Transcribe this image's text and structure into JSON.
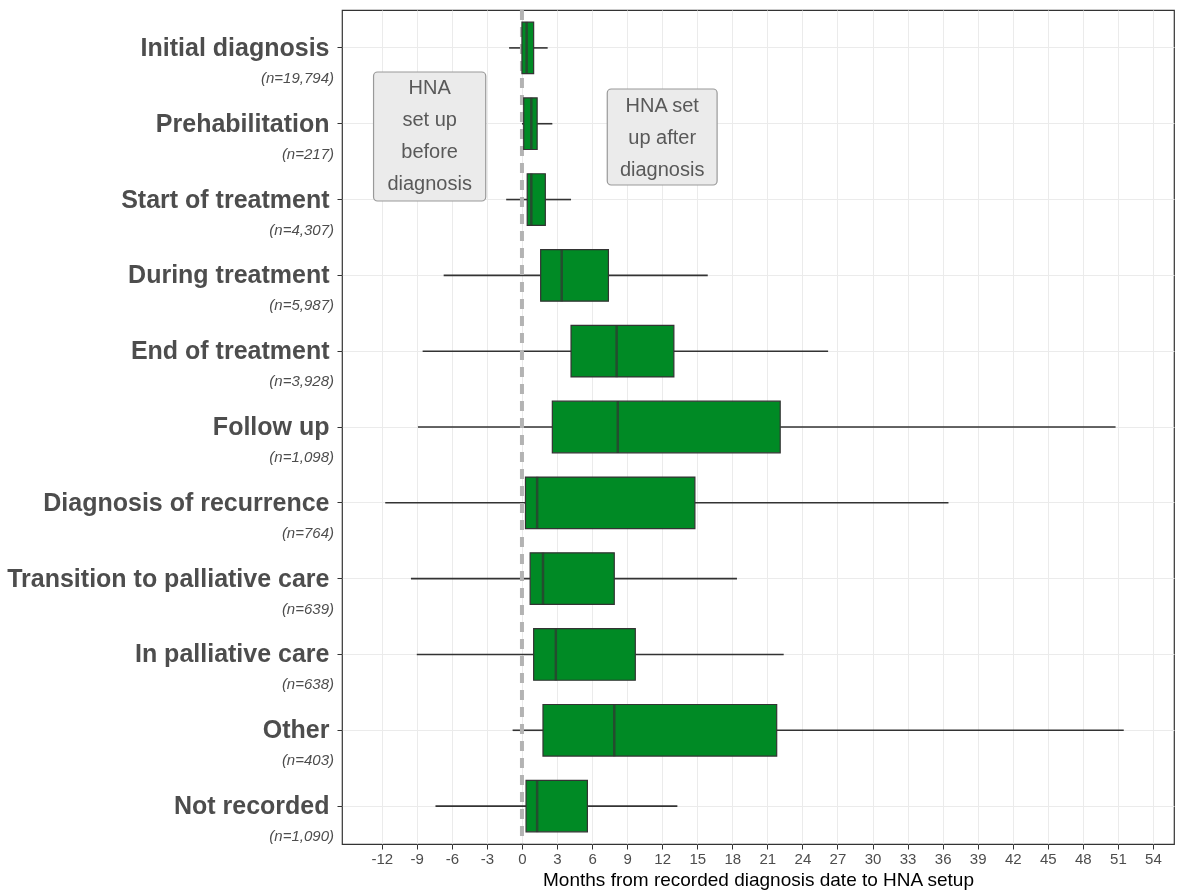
{
  "chart_data": {
    "type": "box",
    "orientation": "horizontal",
    "categories": [
      "Initial diagnosis\n(n=19,794)",
      "Prehabilitation\n(n=217)",
      "Start of treatment\n(n=4,307)",
      "During treatment\n(n=5,987)",
      "End of treatment\n(n=3,928)",
      "Follow up\n(n=1,098)",
      "Diagnosis of recurrence\n(n=764)",
      "Transition to palliative care\n(n=639)",
      "In palliative care\n(n=638)",
      "Other\n(n=403)",
      "Not recorded\n(n=1,090)"
    ],
    "boxes": [
      {
        "low": -1.1,
        "q1": 0.0,
        "median": 0.4,
        "q3": 1.0,
        "high": 2.2
      },
      {
        "low": 0.0,
        "q1": 0.15,
        "median": 0.8,
        "q3": 1.3,
        "high": 2.6
      },
      {
        "low": -1.35,
        "q1": 0.45,
        "median": 0.8,
        "q3": 2.0,
        "high": 4.2
      },
      {
        "low": -6.7,
        "q1": 1.6,
        "median": 3.4,
        "q3": 7.4,
        "high": 15.9
      },
      {
        "low": -8.5,
        "q1": 4.2,
        "median": 8.1,
        "q3": 13.0,
        "high": 26.2
      },
      {
        "low": -8.9,
        "q1": 2.6,
        "median": 8.2,
        "q3": 22.1,
        "high": 50.8
      },
      {
        "low": -11.7,
        "q1": 0.3,
        "median": 1.3,
        "q3": 14.8,
        "high": 36.5
      },
      {
        "low": -9.5,
        "q1": 0.7,
        "median": 1.8,
        "q3": 7.9,
        "high": 18.4
      },
      {
        "low": -9.0,
        "q1": 1.0,
        "median": 2.9,
        "q3": 9.7,
        "high": 22.4
      },
      {
        "low": -0.8,
        "q1": 1.8,
        "median": 7.9,
        "q3": 21.8,
        "high": 51.5
      },
      {
        "low": -7.4,
        "q1": 0.35,
        "median": 1.3,
        "q3": 5.6,
        "high": 13.3
      }
    ],
    "color": "#008a25",
    "xlabel": "Months from recorded diagnosis date to HNA setup",
    "xlim": [
      -15.4,
      55.8
    ],
    "xticks": [
      -12,
      -9,
      -6,
      -3,
      0,
      3,
      6,
      9,
      12,
      15,
      18,
      21,
      24,
      27,
      30,
      33,
      36,
      39,
      42,
      45,
      48,
      51,
      54
    ],
    "grid": true,
    "ref_lines": [
      {
        "axis": "x",
        "value": 0,
        "color": "#b3b3b3",
        "line_style": "dashed"
      }
    ],
    "annotations": [
      "HNA\nset up\nbefore\ndiagnosis",
      "HNA set\nup after\ndiagnosis"
    ]
  }
}
